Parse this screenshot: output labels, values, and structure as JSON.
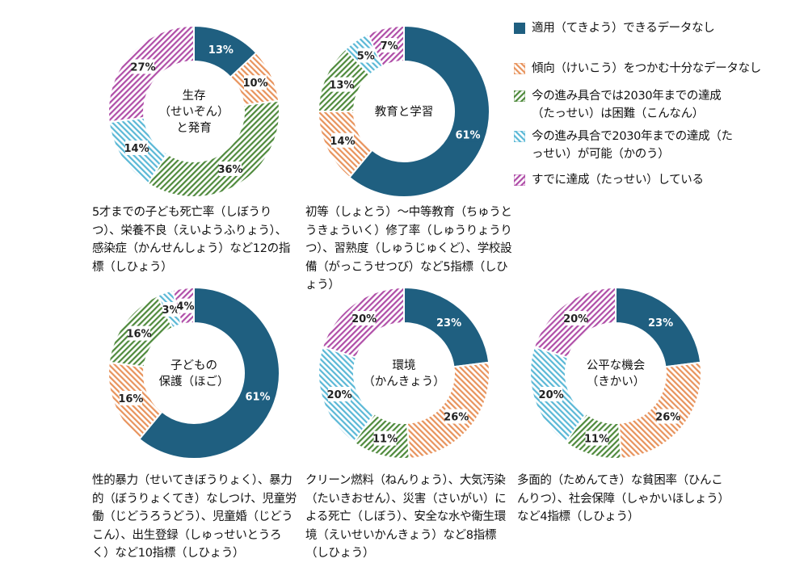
{
  "colors": {
    "category_1": "#1f5f80",
    "category_2": "#e8935c",
    "category_3": "#4f8a3c",
    "category_4": "#5ab8d6",
    "category_5": "#b04ea8"
  },
  "legend": [
    {
      "label": "適用（てきよう）できるデータなし"
    },
    {
      "label": "傾向（けいこう）をつかむ十分なデータなし"
    },
    {
      "label": "今の進み具合では2030年までの達成（たっせい）は困難（こんなん）"
    },
    {
      "label": "今の進み具合で2030年までの達成（たっせい）が可能（かのう）"
    },
    {
      "label": "すでに達成（たっせい）している"
    }
  ],
  "chart_data": [
    {
      "type": "pie",
      "title_lines": [
        "生存",
        "（せいぞん）",
        "と発育"
      ],
      "values": [
        13,
        10,
        36,
        14,
        27
      ],
      "labels": [
        "13%",
        "10%",
        "36%",
        "14%",
        "27%"
      ],
      "caption": "5才までの子ども死亡率（しぼうりつ）、栄養不良（えいようふりょう）、感染症（かんせんしょう）など12の指標（しひょう）"
    },
    {
      "type": "pie",
      "title_lines": [
        "教育と学習"
      ],
      "values": [
        61,
        14,
        13,
        5,
        7
      ],
      "labels": [
        "61%",
        "14%",
        "13%",
        "5%",
        "7%"
      ],
      "caption": "初等（しょとう）～中等教育（ちゅうとうきょういく）修了率（しゅうりょうりつ）、習熟度（しゅうじゅくど）、学校設備（がっこうせつび）など5指標（しひょう）"
    },
    {
      "type": "pie",
      "title_lines": [
        "子どもの",
        "保護（ほご）"
      ],
      "values": [
        61,
        16,
        16,
        3,
        4
      ],
      "labels": [
        "61%",
        "16%",
        "16%",
        "3%",
        "4%"
      ],
      "caption": "性的暴力（せいてきぼうりょく）、暴力的（ぼうりょくてき）なしつけ、児童労働（じどうろうどう）、児童婚（じどうこん）、出生登録（しゅっせいとうろく）など10指標（しひょう）"
    },
    {
      "type": "pie",
      "title_lines": [
        "環境",
        "（かんきょう）"
      ],
      "values": [
        23,
        26,
        11,
        20,
        20
      ],
      "labels": [
        "23%",
        "26%",
        "11%",
        "20%",
        "20%"
      ],
      "caption": "クリーン燃料（ねんりょう）、大気汚染（たいきおせん）、災害（さいがい）による死亡（しぼう）、安全な水や衛生環境（えいせいかんきょう）など8指標（しひょう）"
    },
    {
      "type": "pie",
      "title_lines": [
        "公平な機会",
        "（きかい）"
      ],
      "values": [
        23,
        26,
        11,
        20,
        20
      ],
      "labels": [
        "23%",
        "26%",
        "11%",
        "20%",
        "20%"
      ],
      "caption": "多面的（ためんてき）な貧困率（ひんこんりつ）、社会保障（しゃかいほしょう）など4指標（しひょう）"
    }
  ]
}
